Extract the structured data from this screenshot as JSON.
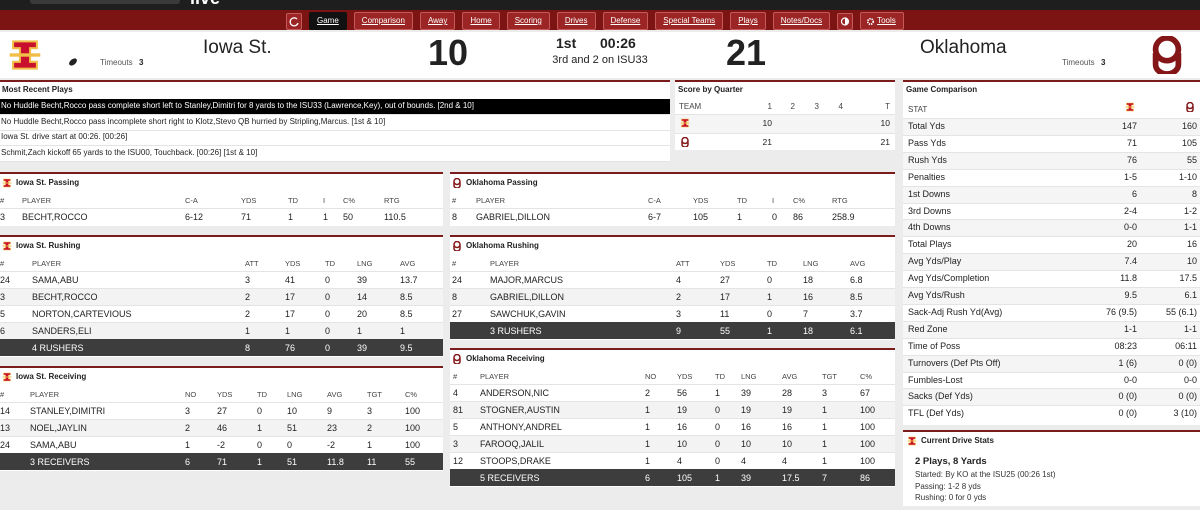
{
  "brand": "live",
  "nav": [
    "Game",
    "Comparison",
    "Away",
    "Home",
    "Scoring",
    "Drives",
    "Defense",
    "Special Teams",
    "Plays",
    "Notes/Docs",
    "Tools"
  ],
  "scoreboard": {
    "away": {
      "name": "Iowa St.",
      "timeouts_label": "Timeouts",
      "timeouts": "3",
      "score": "10"
    },
    "home": {
      "name": "Oklahoma",
      "timeouts_label": "Timeouts",
      "timeouts": "3",
      "score": "21"
    },
    "period": "1st",
    "clock": "00:26",
    "situation": "3rd and 2 on ISU33"
  },
  "recent_plays": {
    "title": "Most Recent Plays",
    "rows": [
      "No Huddle Becht,Rocco pass complete short left to Stanley,Dimitri for 8 yards to the ISU33 (Lawrence,Key), out of bounds. [2nd & 10]",
      "No Huddle Becht,Rocco pass incomplete short right to Klotz,Stevo QB hurried by Stripling,Marcus. [1st & 10]",
      "Iowa St. drive start at 00:26. [00:26]",
      "Schmit,Zach kickoff 65 yards to the ISU00, Touchback. [00:26] [1st & 10]"
    ]
  },
  "score_by_quarter": {
    "title": "Score by Quarter",
    "header": [
      "TEAM",
      "1",
      "2",
      "3",
      "4",
      "T"
    ],
    "rows": [
      [
        "10",
        null,
        null,
        null,
        "10"
      ],
      [
        "21",
        null,
        null,
        null,
        "21"
      ]
    ]
  },
  "game_comparison": {
    "title": "Game Comparison",
    "header": "STAT",
    "rows": [
      [
        "Total Yds",
        "147",
        "160"
      ],
      [
        "Pass Yds",
        "71",
        "105"
      ],
      [
        "Rush Yds",
        "76",
        "55"
      ],
      [
        "Penalties",
        "1-5",
        "1-10"
      ],
      [
        "1st Downs",
        "6",
        "8"
      ],
      [
        "3rd Downs",
        "2-4",
        "1-2"
      ],
      [
        "4th Downs",
        "0-0",
        "1-1"
      ],
      [
        "Total Plays",
        "20",
        "16"
      ],
      [
        "Avg Yds/Play",
        "7.4",
        "10"
      ],
      [
        "Avg Yds/Completion",
        "11.8",
        "17.5"
      ],
      [
        "Avg Yds/Rush",
        "9.5",
        "6.1"
      ],
      [
        "Sack-Adj Rush Yd(Avg)",
        "76 (9.5)",
        "55 (6.1)"
      ],
      [
        "Red Zone",
        "1-1",
        "1-1"
      ],
      [
        "Time of Poss",
        "08:23",
        "06:11"
      ],
      [
        "Turnovers (Def Pts Off)",
        "1 (6)",
        "0 (0)"
      ],
      [
        "Fumbles-Lost",
        "0-0",
        "0-0"
      ],
      [
        "Sacks (Def Yds)",
        "0 (0)",
        "0 (0)"
      ],
      [
        "TFL (Def Yds)",
        "0 (0)",
        "3 (10)"
      ]
    ]
  },
  "tables": {
    "iowa_st_passing": {
      "title": "Iowa St. Passing",
      "header": [
        "#",
        "PLAYER",
        "C-A",
        "YDS",
        "TD",
        "I",
        "C%",
        "RTG"
      ],
      "rows": [
        [
          "3",
          "BECHT,ROCCO",
          "6-12",
          "71",
          "1",
          "1",
          "50",
          "110.5"
        ]
      ]
    },
    "oklahoma_passing": {
      "title": "Oklahoma Passing",
      "header": [
        "#",
        "PLAYER",
        "C-A",
        "YDS",
        "TD",
        "I",
        "C%",
        "RTG"
      ],
      "rows": [
        [
          "8",
          "GABRIEL,DILLON",
          "6-7",
          "105",
          "1",
          "0",
          "86",
          "258.9"
        ]
      ]
    },
    "iowa_st_rushing": {
      "title": "Iowa St. Rushing",
      "header": [
        "#",
        "PLAYER",
        "ATT",
        "YDS",
        "TD",
        "LNG",
        "AVG"
      ],
      "rows": [
        [
          "24",
          "SAMA,ABU",
          "3",
          "41",
          "0",
          "39",
          "13.7"
        ],
        [
          "3",
          "BECHT,ROCCO",
          "2",
          "17",
          "0",
          "14",
          "8.5"
        ],
        [
          "5",
          "NORTON,CARTEVIOUS",
          "2",
          "17",
          "0",
          "20",
          "8.5"
        ],
        [
          "6",
          "SANDERS,ELI",
          "1",
          "1",
          "0",
          "1",
          "1"
        ]
      ],
      "total": [
        "4 RUSHERS",
        "8",
        "76",
        "0",
        "39",
        "9.5"
      ]
    },
    "oklahoma_rushing": {
      "title": "Oklahoma Rushing",
      "header": [
        "#",
        "PLAYER",
        "ATT",
        "YDS",
        "TD",
        "LNG",
        "AVG"
      ],
      "rows": [
        [
          "24",
          "MAJOR,MARCUS",
          "4",
          "27",
          "0",
          "18",
          "6.8"
        ],
        [
          "8",
          "GABRIEL,DILLON",
          "2",
          "17",
          "1",
          "16",
          "8.5"
        ],
        [
          "27",
          "SAWCHUK,GAVIN",
          "3",
          "11",
          "0",
          "7",
          "3.7"
        ]
      ],
      "total": [
        "3 RUSHERS",
        "9",
        "55",
        "1",
        "18",
        "6.1"
      ]
    },
    "iowa_st_receiving": {
      "title": "Iowa St. Receiving",
      "header": [
        "#",
        "PLAYER",
        "NO",
        "YDS",
        "TD",
        "LNG",
        "AVG",
        "TGT",
        "C%"
      ],
      "rows": [
        [
          "14",
          "STANLEY,DIMITRI",
          "3",
          "27",
          "0",
          "10",
          "9",
          "3",
          "100"
        ],
        [
          "13",
          "NOEL,JAYLIN",
          "2",
          "46",
          "1",
          "51",
          "23",
          "2",
          "100"
        ],
        [
          "24",
          "SAMA,ABU",
          "1",
          "-2",
          "0",
          "0",
          "-2",
          "1",
          "100"
        ]
      ],
      "total": [
        "3 RECEIVERS",
        "6",
        "71",
        "1",
        "51",
        "11.8",
        "11",
        "55"
      ]
    },
    "oklahoma_receiving": {
      "title": "Oklahoma Receiving",
      "header": [
        "#",
        "PLAYER",
        "NO",
        "YDS",
        "TD",
        "LNG",
        "AVG",
        "TGT",
        "C%"
      ],
      "rows": [
        [
          "4",
          "ANDERSON,NIC",
          "2",
          "56",
          "1",
          "39",
          "28",
          "3",
          "67"
        ],
        [
          "81",
          "STOGNER,AUSTIN",
          "1",
          "19",
          "0",
          "19",
          "19",
          "1",
          "100"
        ],
        [
          "5",
          "ANTHONY,ANDREL",
          "1",
          "16",
          "0",
          "16",
          "16",
          "1",
          "100"
        ],
        [
          "3",
          "FAROOQ,JALIL",
          "1",
          "10",
          "0",
          "10",
          "10",
          "1",
          "100"
        ],
        [
          "12",
          "STOOPS,DRAKE",
          "1",
          "4",
          "0",
          "4",
          "4",
          "1",
          "100"
        ]
      ],
      "total": [
        "5 RECEIVERS",
        "6",
        "105",
        "1",
        "39",
        "17.5",
        "7",
        "86"
      ]
    }
  },
  "current_drive": {
    "title": "Current Drive Stats",
    "summary": "2 Plays, 8 Yards",
    "lines": [
      "Started: By KO at the ISU25 (00:26 1st)",
      "Passing: 1-2 8 yds",
      "Rushing: 0 for 0 yds"
    ]
  }
}
